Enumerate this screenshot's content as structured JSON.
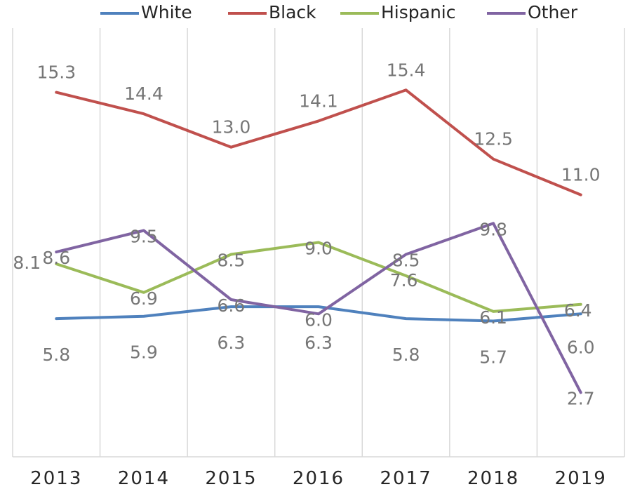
{
  "chart_data": {
    "type": "line",
    "title": "",
    "xlabel": "",
    "ylabel": "",
    "categories": [
      "2013",
      "2014",
      "2015",
      "2016",
      "2017",
      "2018",
      "2019"
    ],
    "ylim": [
      0,
      18
    ],
    "grid": {
      "vertical": true,
      "horizontal": false
    },
    "legend": {
      "position": "top"
    },
    "series": [
      {
        "name": "White",
        "color": "#4F81BD",
        "values": [
          5.8,
          5.9,
          6.3,
          6.3,
          5.8,
          5.7,
          6.0
        ],
        "labels": [
          "5.8",
          "5.9",
          "6.3",
          "6.3",
          "5.8",
          "5.7",
          "6.0"
        ]
      },
      {
        "name": "Black",
        "color": "#C0504D",
        "values": [
          15.3,
          14.4,
          13.0,
          14.1,
          15.4,
          12.5,
          11.0
        ],
        "labels": [
          "15.3",
          "14.4",
          "13.0",
          "14.1",
          "15.4",
          "12.5",
          "11.0"
        ]
      },
      {
        "name": "Hispanic",
        "color": "#9BBB59",
        "values": [
          8.1,
          6.9,
          8.5,
          9.0,
          7.6,
          6.1,
          6.4
        ],
        "labels": [
          "8.1",
          "6.9",
          "8.5",
          "9.0",
          "7.6",
          "6.1",
          "6.4"
        ]
      },
      {
        "name": "Other",
        "color": "#8064A2",
        "values": [
          8.6,
          9.5,
          6.6,
          6.0,
          8.5,
          9.8,
          2.7
        ],
        "labels": [
          "8.6",
          "9.5",
          "6.6",
          "6.0",
          "8.5",
          "9.8",
          "2.7"
        ]
      }
    ]
  }
}
